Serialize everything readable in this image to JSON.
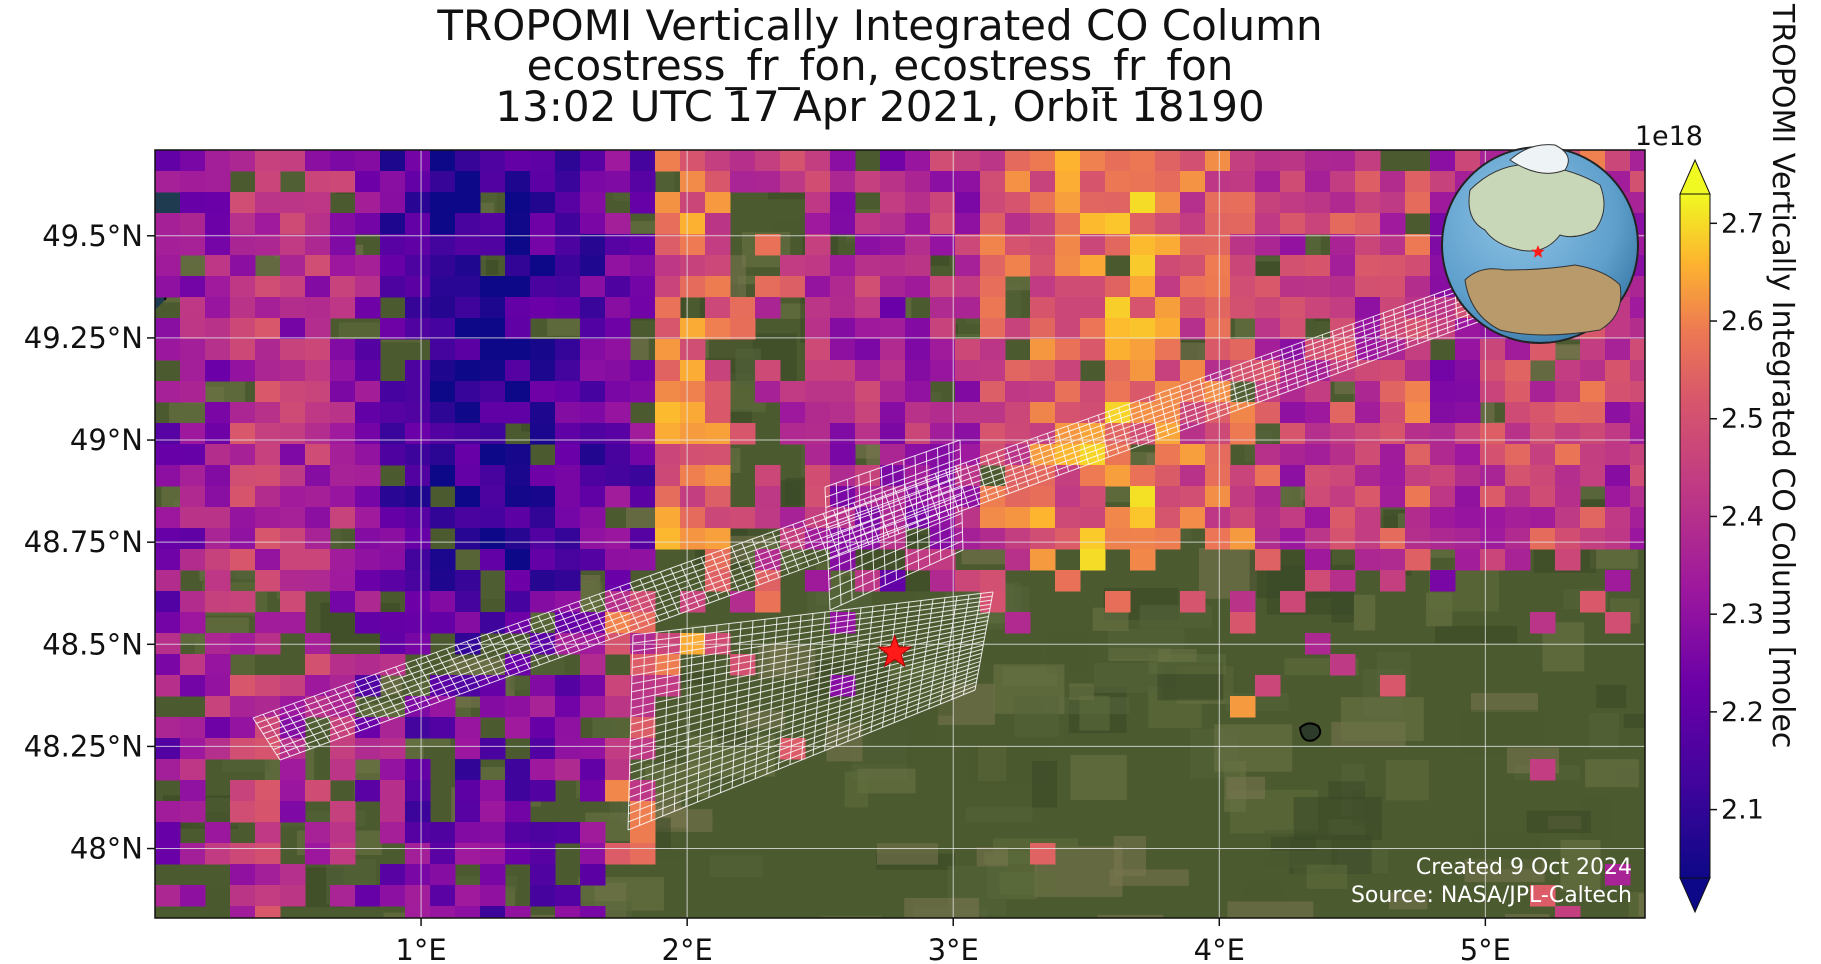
{
  "title": {
    "line1": "TROPOMI Vertically Integrated CO Column",
    "line2": "ecostress_fr_fon, ecostress_fr_fon",
    "line3": "13:02 UTC 17 Apr 2021, Orbit 18190"
  },
  "axes": {
    "x_ticks": [
      "1°E",
      "2°E",
      "3°E",
      "4°E",
      "5°E"
    ],
    "x_tick_values": [
      1,
      2,
      3,
      4,
      5
    ],
    "y_ticks": [
      "49.5°N",
      "49.25°N",
      "49°N",
      "48.75°N",
      "48.5°N",
      "48.25°N",
      "48°N"
    ],
    "y_tick_values": [
      49.5,
      49.25,
      49.0,
      48.75,
      48.5,
      48.25,
      48.0
    ],
    "lon_range": [
      0.0,
      5.6
    ],
    "lat_range": [
      47.83,
      49.71
    ],
    "grid": true
  },
  "colorbar": {
    "label": "TROPOMI Vertically Integrated CO Column [molec",
    "exponent": "1e18",
    "ticks": [
      "2.1",
      "2.2",
      "2.3",
      "2.4",
      "2.5",
      "2.6",
      "2.7"
    ],
    "tick_values": [
      2.1,
      2.2,
      2.3,
      2.4,
      2.5,
      2.6,
      2.7
    ],
    "range": [
      2.03,
      2.73
    ],
    "colormap": "plasma",
    "extend": "both"
  },
  "marker": {
    "type": "red star",
    "lon": 2.78,
    "lat": 48.48,
    "color": "#ff1a1a"
  },
  "credits": {
    "created": "Created 9 Oct 2024",
    "source": "Source: NASA/JPL-Caltech"
  },
  "inset_globe": {
    "description_icon": "globe-icon",
    "marker_color": "#ff1a1a"
  },
  "colors": {
    "land_dark": "#3d4a2a",
    "land_mid": "#5b6b3a",
    "sea": "#1f3b4f",
    "grid": "#e6e6e6",
    "swath_outline": "#ffffff"
  }
}
